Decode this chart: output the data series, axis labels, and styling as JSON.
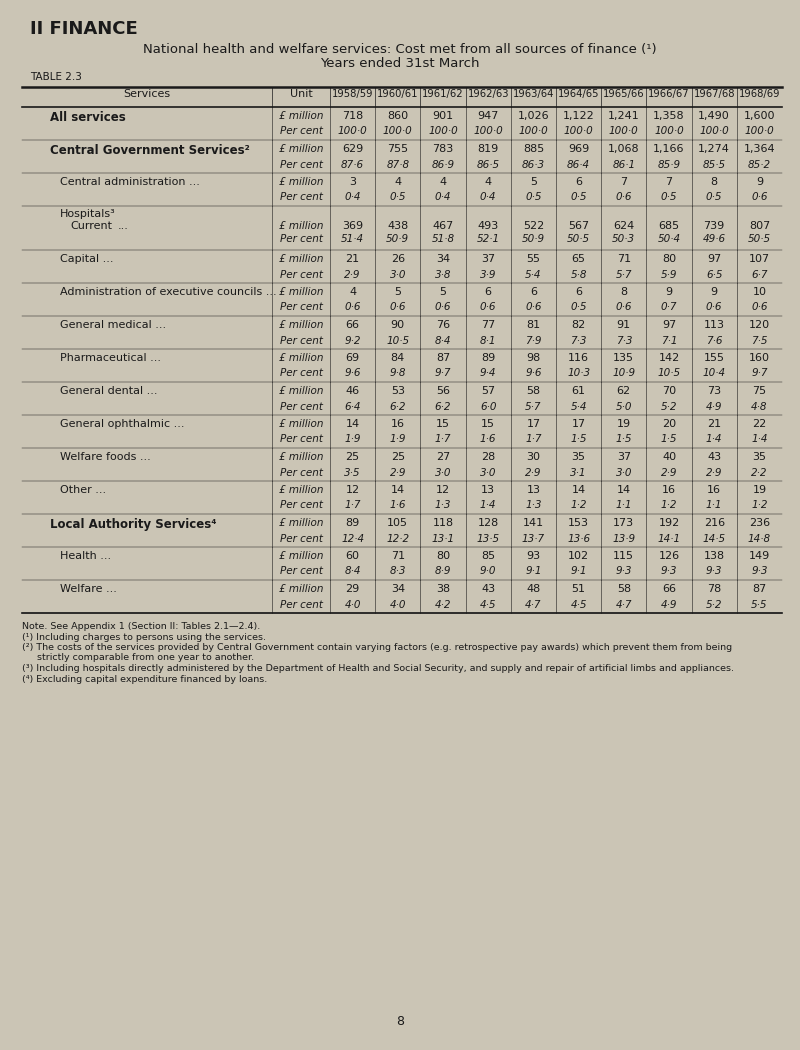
{
  "page_title": "II FINANCE",
  "table_title_line1": "National health and welfare services: Cost met from all sources of finance (¹)",
  "table_title_line2": "Years ended 31st March",
  "table_label": "TABLE 2.3",
  "bg_color": "#cbc5b5",
  "years": [
    "1958/59",
    "1960/61",
    "1961/62",
    "1962/63",
    "1963/64",
    "1964/65",
    "1965/66",
    "1966/67",
    "1967/68",
    "1968/69"
  ],
  "rows": [
    {
      "label": "All services",
      "label2": "... ... ... ...",
      "indent": 0,
      "bold": true,
      "unit1": "£ million",
      "unit2": "Per cent",
      "v1": [
        "718",
        "860",
        "901",
        "947",
        "1,026",
        "1,122",
        "1,241",
        "1,358",
        "1,490",
        "1,600"
      ],
      "v2": [
        "100·0",
        "100·0",
        "100·0",
        "100·0",
        "100·0",
        "100·0",
        "100·0",
        "100·0",
        "100·0",
        "100·0"
      ],
      "multiline_label": false
    },
    {
      "label": "Central Government Services²",
      "label2": "...",
      "indent": 0,
      "bold": true,
      "unit1": "£ million",
      "unit2": "Per cent",
      "v1": [
        "629",
        "755",
        "783",
        "819",
        "885",
        "969",
        "1,068",
        "1,166",
        "1,274",
        "1,364"
      ],
      "v2": [
        "87·6",
        "87·8",
        "86·9",
        "86·5",
        "86·3",
        "86·4",
        "86·1",
        "85·9",
        "85·5",
        "85·2"
      ],
      "multiline_label": false
    },
    {
      "label": "Central administration ...",
      "label2": "... ...",
      "indent": 1,
      "bold": false,
      "unit1": "£ million",
      "unit2": "Per cent",
      "v1": [
        "3",
        "4",
        "4",
        "4",
        "5",
        "6",
        "7",
        "7",
        "8",
        "9"
      ],
      "v2": [
        "0·4",
        "0·5",
        "0·4",
        "0·4",
        "0·5",
        "0·5",
        "0·6",
        "0·5",
        "0·5",
        "0·6"
      ],
      "multiline_label": false
    },
    {
      "label": "Hospitals³",
      "label_sub": "  Current",
      "label2": "... ... ...",
      "indent": 1,
      "bold": false,
      "unit1": "£ million",
      "unit2": "Per cent",
      "v1": [
        "369",
        "438",
        "467",
        "493",
        "522",
        "567",
        "624",
        "685",
        "739",
        "807"
      ],
      "v2": [
        "51·4",
        "50·9",
        "51·8",
        "52·1",
        "50·9",
        "50·5",
        "50·3",
        "50·4",
        "49·6",
        "50·5"
      ],
      "multiline_label": true
    },
    {
      "label": "Capital ...",
      "label2": "... ... ...",
      "indent": 1,
      "bold": false,
      "unit1": "£ million",
      "unit2": "Per cent",
      "v1": [
        "21",
        "26",
        "34",
        "37",
        "55",
        "65",
        "71",
        "80",
        "97",
        "107"
      ],
      "v2": [
        "2·9",
        "3·0",
        "3·8",
        "3·9",
        "5·4",
        "5·8",
        "5·7",
        "5·9",
        "6·5",
        "6·7"
      ],
      "multiline_label": false
    },
    {
      "label": "Administration of executive councils ...",
      "label2": "",
      "indent": 1,
      "bold": false,
      "unit1": "£ million",
      "unit2": "Per cent",
      "v1": [
        "4",
        "5",
        "5",
        "6",
        "6",
        "6",
        "8",
        "9",
        "9",
        "10"
      ],
      "v2": [
        "0·6",
        "0·6",
        "0·6",
        "0·6",
        "0·6",
        "0·5",
        "0·6",
        "0·7",
        "0·6",
        "0·6"
      ],
      "multiline_label": false
    },
    {
      "label": "General medical ...",
      "label2": "... ... ...",
      "indent": 1,
      "bold": false,
      "unit1": "£ million",
      "unit2": "Per cent",
      "v1": [
        "66",
        "90",
        "76",
        "77",
        "81",
        "82",
        "91",
        "97",
        "113",
        "120"
      ],
      "v2": [
        "9·2",
        "10·5",
        "8·4",
        "8·1",
        "7·9",
        "7·3",
        "7·3",
        "7·1",
        "7·6",
        "7·5"
      ],
      "multiline_label": false
    },
    {
      "label": "Pharmaceutical ...",
      "label2": "... ... ...",
      "indent": 1,
      "bold": false,
      "unit1": "£ million",
      "unit2": "Per cent",
      "v1": [
        "69",
        "84",
        "87",
        "89",
        "98",
        "116",
        "135",
        "142",
        "155",
        "160"
      ],
      "v2": [
        "9·6",
        "9·8",
        "9·7",
        "9·4",
        "9·6",
        "10·3",
        "10·9",
        "10·5",
        "10·4",
        "9·7"
      ],
      "multiline_label": false
    },
    {
      "label": "General dental ...",
      "label2": "... ... ...",
      "indent": 1,
      "bold": false,
      "unit1": "£ million",
      "unit2": "Per cent",
      "v1": [
        "46",
        "53",
        "56",
        "57",
        "58",
        "61",
        "62",
        "70",
        "73",
        "75"
      ],
      "v2": [
        "6·4",
        "6·2",
        "6·2",
        "6·0",
        "5·7",
        "5·4",
        "5·0",
        "5·2",
        "4·9",
        "4·8"
      ],
      "multiline_label": false
    },
    {
      "label": "General ophthalmic ...",
      "label2": "... ...",
      "indent": 1,
      "bold": false,
      "unit1": "£ million",
      "unit2": "Per cent",
      "v1": [
        "14",
        "16",
        "15",
        "15",
        "17",
        "17",
        "19",
        "20",
        "21",
        "22"
      ],
      "v2": [
        "1·9",
        "1·9",
        "1·7",
        "1·6",
        "1·7",
        "1·5",
        "1·5",
        "1·5",
        "1·4",
        "1·4"
      ],
      "multiline_label": false
    },
    {
      "label": "Welfare foods ...",
      "label2": "... ... ...",
      "indent": 1,
      "bold": false,
      "unit1": "£ million",
      "unit2": "Per cent",
      "v1": [
        "25",
        "25",
        "27",
        "28",
        "30",
        "35",
        "37",
        "40",
        "43",
        "35"
      ],
      "v2": [
        "3·5",
        "2·9",
        "3·0",
        "3·0",
        "2·9",
        "3·1",
        "3·0",
        "2·9",
        "2·9",
        "2·2"
      ],
      "multiline_label": false
    },
    {
      "label": "Other ...",
      "label2": "... ... ... ...",
      "indent": 1,
      "bold": false,
      "unit1": "£ million",
      "unit2": "Per cent",
      "v1": [
        "12",
        "14",
        "12",
        "13",
        "13",
        "14",
        "14",
        "16",
        "16",
        "19"
      ],
      "v2": [
        "1·7",
        "1·6",
        "1·3",
        "1·4",
        "1·3",
        "1·2",
        "1·1",
        "1·2",
        "1·1",
        "1·2"
      ],
      "multiline_label": false
    },
    {
      "label": "Local Authority Services⁴",
      "label2": "... ...",
      "indent": 0,
      "bold": true,
      "unit1": "£ million",
      "unit2": "Per cent",
      "v1": [
        "89",
        "105",
        "118",
        "128",
        "141",
        "153",
        "173",
        "192",
        "216",
        "236"
      ],
      "v2": [
        "12·4",
        "12·2",
        "13·1",
        "13·5",
        "13·7",
        "13·6",
        "13·9",
        "14·1",
        "14·5",
        "14·8"
      ],
      "multiline_label": false
    },
    {
      "label": "Health ...",
      "label2": "... ... ... ...",
      "indent": 1,
      "bold": false,
      "unit1": "£ million",
      "unit2": "Per cent",
      "v1": [
        "60",
        "71",
        "80",
        "85",
        "93",
        "102",
        "115",
        "126",
        "138",
        "149"
      ],
      "v2": [
        "8·4",
        "8·3",
        "8·9",
        "9·0",
        "9·1",
        "9·1",
        "9·3",
        "9·3",
        "9·3",
        "9·3"
      ],
      "multiline_label": false
    },
    {
      "label": "Welfare ...",
      "label2": "... ... ... ...",
      "indent": 1,
      "bold": false,
      "unit1": "£ million",
      "unit2": "Per cent",
      "v1": [
        "29",
        "34",
        "38",
        "43",
        "48",
        "51",
        "58",
        "66",
        "78",
        "87"
      ],
      "v2": [
        "4·0",
        "4·0",
        "4·2",
        "4·5",
        "4·7",
        "4·5",
        "4·7",
        "4·9",
        "5·2",
        "5·5"
      ],
      "multiline_label": false
    }
  ],
  "footnotes": [
    "Note. See Appendix 1 (Section II: Tables 2.1—2.4).",
    "(¹) Including charges to persons using the services.",
    "(²) The costs of the services provided by Central Government contain varying factors (e.g. retrospective pay awards) which prevent them from being",
    "     strictly comparable from one year to another.",
    "(³) Including hospitals directly administered by the Department of Health and Social Security, and supply and repair of artificial limbs and appliances.",
    "(⁴) Excluding capital expenditure financed by loans."
  ],
  "page_number": "8"
}
